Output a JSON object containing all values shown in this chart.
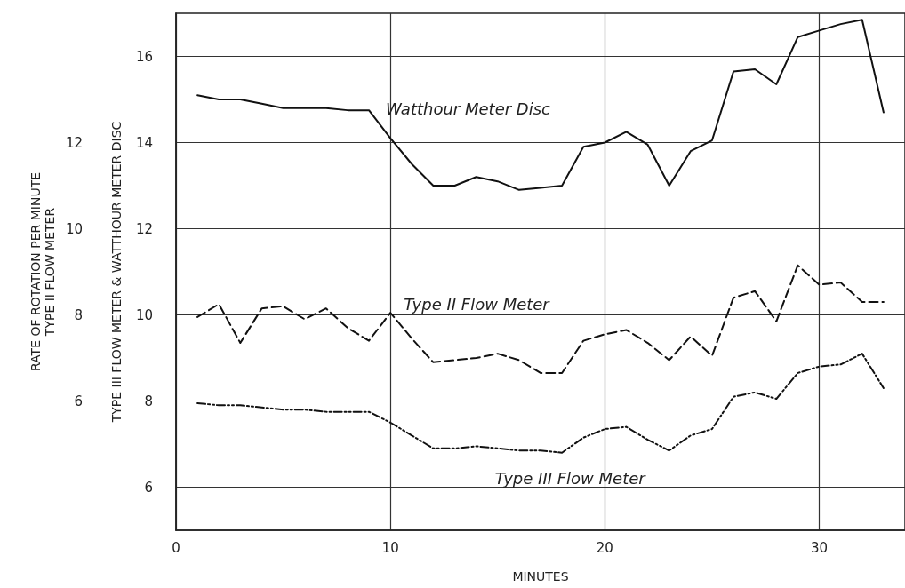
{
  "chart_data": {
    "type": "line",
    "xlabel": "MINUTES",
    "ylabel": "TYPE III FLOW METER & WATTHOUR METER DISC",
    "y2label": "TYPE II FLOW METER",
    "annotations": [
      "RATE OF ROTATION PER MINUTE"
    ],
    "x": [
      1,
      2,
      3,
      4,
      5,
      6,
      7,
      8,
      9,
      10,
      11,
      12,
      13,
      14,
      15,
      16,
      17,
      18,
      19,
      20,
      21,
      22,
      23,
      24,
      25,
      26,
      27,
      28,
      29,
      30,
      31,
      32,
      33
    ],
    "series": [
      {
        "name": "Watthour Meter Disc",
        "color": "#111111",
        "line_style": "solid",
        "values": [
          15.1,
          15.0,
          15.0,
          14.9,
          14.8,
          14.8,
          14.8,
          14.75,
          14.75,
          14.1,
          13.5,
          13.0,
          13.0,
          13.2,
          13.1,
          12.9,
          12.95,
          13.0,
          13.9,
          14.0,
          14.25,
          13.95,
          13.0,
          13.8,
          14.05,
          15.65,
          15.7,
          15.35,
          16.45,
          16.6,
          16.75,
          16.85,
          14.7
        ]
      },
      {
        "name": "Type II Flow Meter",
        "color": "#111111",
        "line_style": "dashed",
        "axis": "y2",
        "values": [
          7.95,
          8.25,
          7.35,
          8.15,
          8.2,
          7.9,
          8.15,
          7.7,
          7.4,
          8.05,
          7.45,
          6.9,
          6.95,
          7.0,
          7.1,
          6.95,
          6.65,
          6.65,
          7.4,
          7.55,
          7.65,
          7.35,
          6.95,
          7.5,
          7.05,
          8.4,
          8.55,
          7.85,
          9.15,
          8.7,
          8.75,
          8.3,
          8.3
        ]
      },
      {
        "name": "Type III Flow Meter",
        "color": "#111111",
        "line_style": "dotted",
        "values": [
          7.95,
          7.9,
          7.9,
          7.85,
          7.8,
          7.8,
          7.75,
          7.75,
          7.75,
          7.5,
          7.2,
          6.9,
          6.9,
          6.95,
          6.9,
          6.85,
          6.85,
          6.8,
          7.15,
          7.35,
          7.4,
          7.1,
          6.85,
          7.2,
          7.35,
          8.1,
          8.2,
          8.05,
          8.65,
          8.8,
          8.85,
          9.1,
          8.3
        ]
      }
    ],
    "xlim": [
      0,
      34
    ],
    "xticks": [
      0,
      10,
      20,
      30
    ],
    "ylim": [
      5,
      17
    ],
    "yticks": [
      6,
      8,
      10,
      12,
      14,
      16
    ],
    "y2lim": [
      3,
      15
    ],
    "y2ticks": [
      6,
      8,
      10,
      12
    ],
    "grid": true,
    "marker": "none",
    "legend": false
  }
}
